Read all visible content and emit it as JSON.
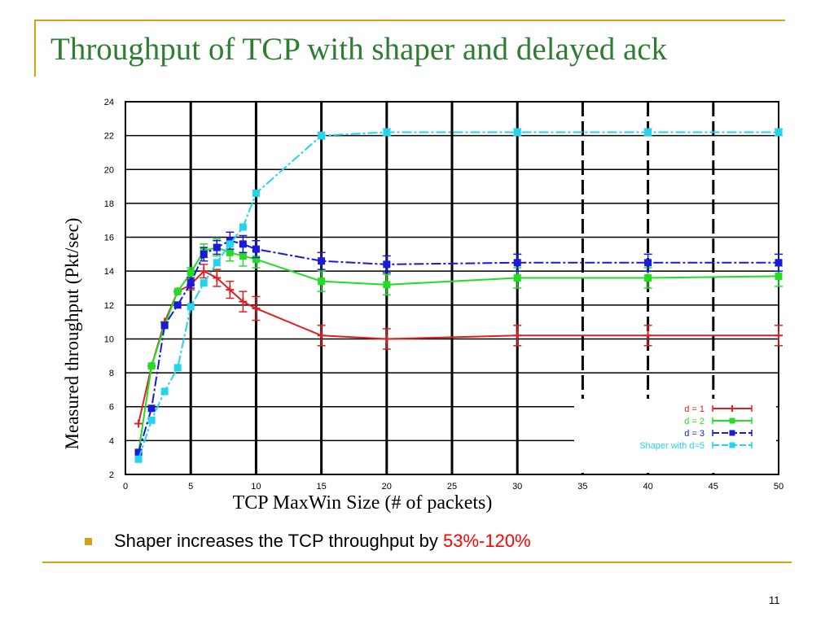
{
  "slide": {
    "title": "Throughput of TCP with shaper and delayed ack",
    "bullet_text": "Shaper increases the TCP throughput by ",
    "bullet_highlight": "53%-120%",
    "page_number": "11",
    "accent_color": "#d4a017",
    "title_color": "#2e7d32",
    "highlight_color": "#ff0000"
  },
  "chart_data": {
    "type": "line",
    "title": "",
    "xlabel": "TCP MaxWin Size (# of packets)",
    "ylabel": "Measured throughput (Pkt/sec)",
    "xlim": [
      0,
      50
    ],
    "ylim": [
      2,
      24
    ],
    "xticks": [
      0,
      5,
      10,
      15,
      20,
      25,
      30,
      35,
      40,
      45,
      50
    ],
    "yticks": [
      2,
      4,
      6,
      8,
      10,
      12,
      14,
      16,
      18,
      20,
      22,
      24
    ],
    "grid": true,
    "legend_position": "bottom-right",
    "series": [
      {
        "name": "d = 1",
        "color": "#e02020",
        "marker": "plus",
        "x": [
          1,
          2,
          3,
          4,
          5,
          6,
          7,
          8,
          9,
          10,
          15,
          20,
          30,
          40,
          50
        ],
        "y": [
          5.0,
          8.4,
          11.0,
          12.8,
          13.2,
          14.0,
          13.6,
          12.9,
          12.2,
          11.8,
          10.2,
          10.0,
          10.2,
          10.2,
          10.2
        ],
        "err": [
          0,
          0,
          0,
          0,
          0.3,
          0.4,
          0.5,
          0.5,
          0.6,
          0.7,
          0.6,
          0.6,
          0.6,
          0.6,
          0.6
        ]
      },
      {
        "name": "d = 2",
        "color": "#22dd22",
        "marker": "square",
        "x": [
          1,
          2,
          3,
          4,
          5,
          6,
          7,
          8,
          9,
          10,
          15,
          20,
          30,
          40,
          50
        ],
        "y": [
          3.3,
          8.4,
          10.8,
          12.8,
          13.9,
          15.2,
          15.4,
          15.1,
          14.9,
          14.7,
          13.4,
          13.2,
          13.6,
          13.6,
          13.7
        ],
        "err": [
          0,
          0,
          0,
          0,
          0.3,
          0.4,
          0.5,
          0.5,
          0.6,
          0.5,
          0.6,
          0.6,
          0.6,
          0.6,
          0.6
        ]
      },
      {
        "name": "d = 3",
        "color": "#1a1ad8",
        "marker": "square",
        "x": [
          1,
          2,
          3,
          4,
          5,
          6,
          7,
          8,
          9,
          10,
          15,
          20,
          30,
          40,
          50
        ],
        "y": [
          3.3,
          5.9,
          10.8,
          12.0,
          13.3,
          15.0,
          15.4,
          15.8,
          15.6,
          15.3,
          14.6,
          14.4,
          14.5,
          14.5,
          14.5
        ],
        "err": [
          0,
          0,
          0,
          0,
          0.3,
          0.4,
          0.4,
          0.5,
          0.5,
          0.5,
          0.5,
          0.5,
          0.5,
          0.5,
          0.5
        ]
      },
      {
        "name": "Shaper with d=5",
        "color": "#22d4ee",
        "marker": "square",
        "x": [
          1,
          2,
          3,
          4,
          5,
          6,
          7,
          8,
          9,
          10,
          15,
          20,
          30,
          40,
          50
        ],
        "y": [
          2.9,
          5.2,
          6.9,
          8.3,
          11.9,
          13.3,
          14.5,
          15.6,
          16.6,
          18.6,
          22.0,
          22.2,
          22.2,
          22.2,
          22.2
        ],
        "err": [
          0,
          0,
          0,
          0,
          0,
          0,
          0,
          0,
          0,
          0,
          0.2,
          0.2,
          0.2,
          0.2,
          0.2
        ]
      }
    ]
  }
}
